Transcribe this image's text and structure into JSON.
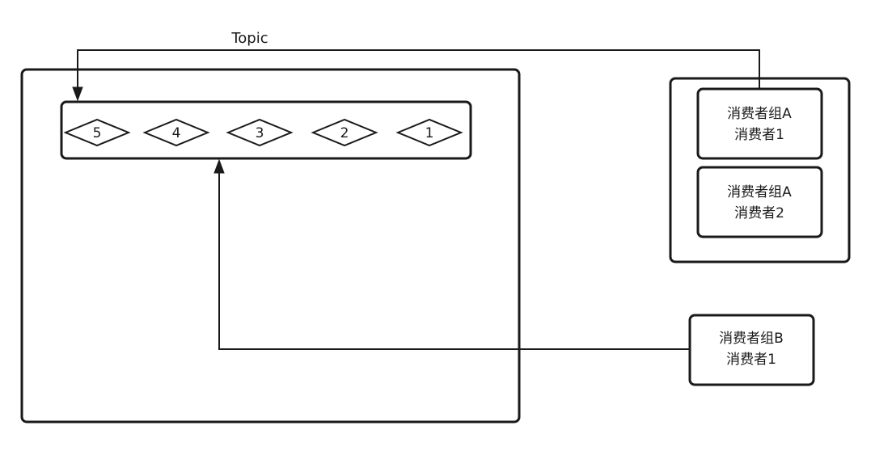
{
  "topic": {
    "label": "Topic"
  },
  "queue": {
    "messages": [
      "5",
      "4",
      "3",
      "2",
      "1"
    ]
  },
  "group_a": {
    "consumers": [
      {
        "group": "消费者组A",
        "name": "消费者1"
      },
      {
        "group": "消费者组A",
        "name": "消费者2"
      }
    ]
  },
  "group_b": {
    "consumer": {
      "group": "消费者组B",
      "name": "消费者1"
    }
  },
  "colors": {
    "stroke": "#1a1a1a",
    "background": "#ffffff"
  }
}
